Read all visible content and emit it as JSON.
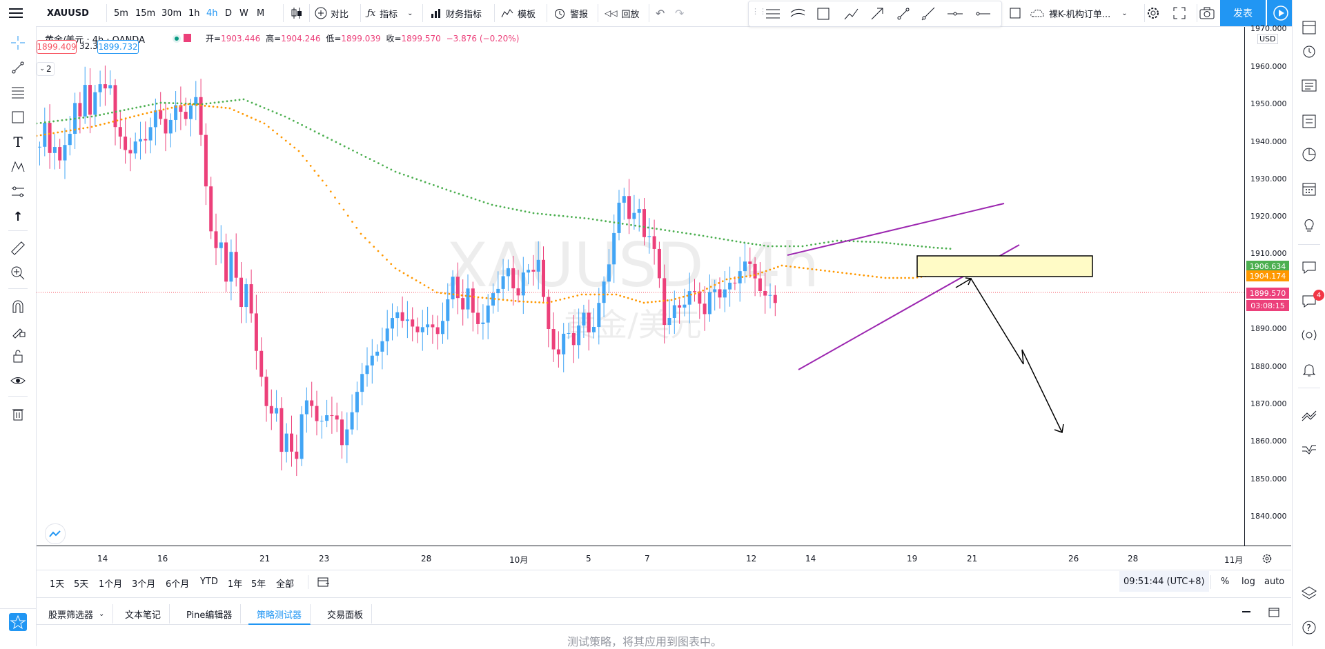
{
  "symbol": "XAUUSD",
  "timeframes": [
    "5m",
    "15m",
    "30m",
    "1h",
    "4h",
    "D",
    "W",
    "M"
  ],
  "active_timeframe": "4h",
  "toolbar": {
    "compare": "对比",
    "indicators": "指标",
    "financials": "财务指标",
    "templates": "模板",
    "alert": "警报",
    "replay": "回放",
    "layout_name": "裸K-机构订单...",
    "publish": "发表"
  },
  "legend": {
    "title": "黄金/美元 · 4h · OANDA",
    "open_label": "开=",
    "open": "1903.446",
    "high_label": "高=",
    "high": "1904.246",
    "low_label": "低=",
    "low": "1899.039",
    "close_label": "收=",
    "close": "1899.570",
    "change": "−3.876 (−0.20%)",
    "bid": "1899.409",
    "spread": "32.3",
    "ask": "1899.732",
    "indicator_count": "2"
  },
  "watermark": {
    "symbol": "XAUUSD, 4h",
    "name": "黄金/美元"
  },
  "price_axis": {
    "currency": "USD",
    "labels": [
      "1970.000",
      "1960.000",
      "1950.000",
      "1940.000",
      "1930.000",
      "1920.000",
      "1910.000",
      "1890.000",
      "1880.000",
      "1870.000",
      "1860.000",
      "1850.000",
      "1840.000"
    ],
    "green_ma": "1906.634",
    "orange_ma": "1904.174",
    "last_price": "1899.570",
    "countdown": "03:08:15"
  },
  "date_axis": [
    "14",
    "16",
    "21",
    "23",
    "28",
    "10月",
    "5",
    "7",
    "12",
    "14",
    "19",
    "21",
    "26",
    "28",
    "11月"
  ],
  "ranges": [
    "1天",
    "5天",
    "1个月",
    "3个月",
    "6个月",
    "YTD",
    "1年",
    "5年",
    "全部"
  ],
  "clock": "09:51:44 (UTC+8)",
  "scale_opts": [
    "%",
    "log",
    "auto"
  ],
  "panel_tabs": [
    "股票筛选器",
    "文本笔记",
    "Pine编辑器",
    "策略测试器",
    "交易面板"
  ],
  "active_panel_tab": "策略测试器",
  "panel_message": "测试策略，将其应用到图表中。",
  "notification_count": "4",
  "colors": {
    "up": "#42a5f5",
    "down": "#ec407a",
    "green_ma": "#4caf50",
    "orange_ma": "#ff9800",
    "wedge": "#9c27b0",
    "zone": "#fffbc6",
    "accent": "#2196f3"
  }
}
